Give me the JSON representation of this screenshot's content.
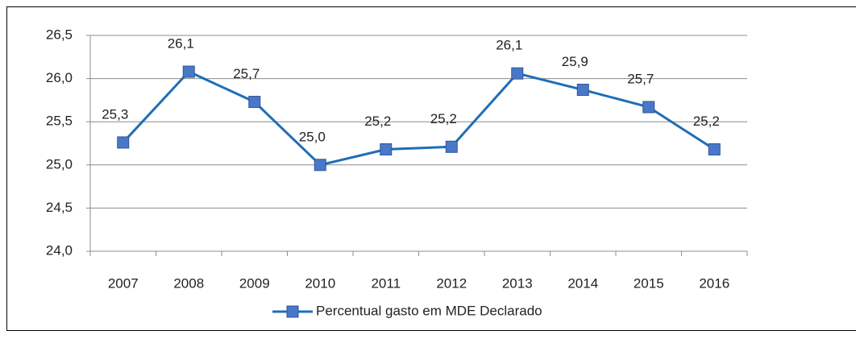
{
  "chart_data": {
    "type": "line",
    "categories": [
      "2007",
      "2008",
      "2009",
      "2010",
      "2011",
      "2012",
      "2013",
      "2014",
      "2015",
      "2016"
    ],
    "series": [
      {
        "name": "Percentual gasto em MDE Declarado",
        "color": "#1f6db8",
        "marker_color": "#4a78c8",
        "values": [
          25.26,
          26.08,
          25.73,
          25.0,
          25.18,
          25.21,
          26.06,
          25.87,
          25.67,
          25.18
        ],
        "value_labels": [
          "25,3",
          "26,1",
          "25,7",
          "25,0",
          "25,2",
          "25,2",
          "26,1",
          "25,9",
          "25,7",
          "25,2"
        ]
      }
    ],
    "ylim": [
      24,
      26.5
    ],
    "yticks": [
      {
        "value": 24,
        "label": "24,0"
      },
      {
        "value": 24.5,
        "label": "24,5"
      },
      {
        "value": 25,
        "label": "25,0"
      },
      {
        "value": 25.5,
        "label": "25,5"
      },
      {
        "value": 26,
        "label": "26,0"
      },
      {
        "value": 26.5,
        "label": "26,5"
      }
    ],
    "grid": true,
    "legend": "bottom"
  }
}
